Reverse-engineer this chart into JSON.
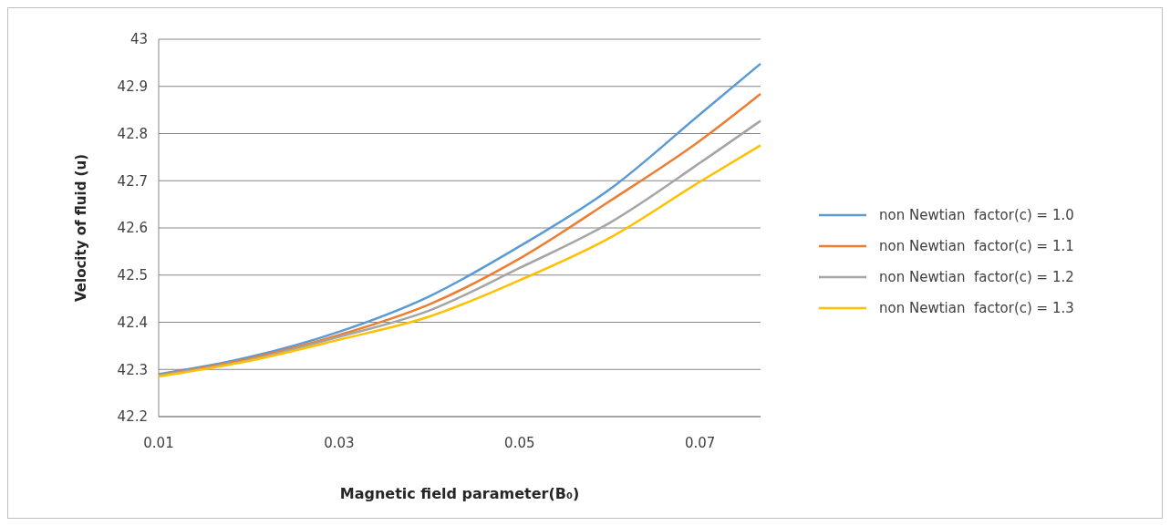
{
  "chart_data": {
    "type": "line",
    "xlabel": "Magnetic field parameter(B₀)",
    "ylabel": "Velocity of fluid (u)",
    "x": [
      0.01,
      0.02,
      0.03,
      0.04,
      0.05,
      0.06,
      0.07,
      0.0767
    ],
    "xlim": [
      0.01,
      0.0767
    ],
    "xticks": [
      0.01,
      0.03,
      0.05,
      0.07
    ],
    "ylim": [
      42.2,
      43
    ],
    "yticks": [
      42.2,
      42.3,
      42.4,
      42.5,
      42.6,
      42.7,
      42.8,
      42.9,
      43
    ],
    "grid": "y",
    "legend": "right",
    "marker": "none",
    "line_style": "solid",
    "series": [
      {
        "name": "non Newtian  factor(c) = 1.0",
        "color": "#5b9bd5",
        "values": [
          42.29,
          42.326,
          42.38,
          42.455,
          42.561,
          42.682,
          42.841,
          42.948
        ]
      },
      {
        "name": "non Newtian  factor(c) = 1.1",
        "color": "#ed7d31",
        "values": [
          42.288,
          42.323,
          42.373,
          42.438,
          42.535,
          42.657,
          42.785,
          42.884
        ]
      },
      {
        "name": "non Newtian  factor(c) = 1.2",
        "color": "#a5a5a5",
        "values": [
          42.287,
          42.32,
          42.369,
          42.425,
          42.515,
          42.611,
          42.738,
          42.827
        ]
      },
      {
        "name": "non Newtian  factor(c) = 1.3",
        "color": "#ffc000",
        "values": [
          42.285,
          42.318,
          42.363,
          42.412,
          42.489,
          42.579,
          42.698,
          42.775
        ]
      }
    ]
  }
}
